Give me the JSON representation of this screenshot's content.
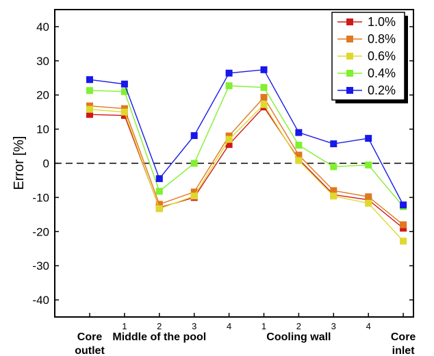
{
  "chart_data": {
    "type": "line",
    "ylabel": "Error [%]",
    "ylim": [
      -45,
      45
    ],
    "yticks": [
      -40,
      -30,
      -20,
      -10,
      0,
      10,
      20,
      30,
      40
    ],
    "x_tick_labels": [
      "",
      "1",
      "2",
      "3",
      "4",
      "1",
      "2",
      "3",
      "4",
      ""
    ],
    "groups": [
      {
        "label_lines": [
          "Core",
          "outlet"
        ],
        "center": 0
      },
      {
        "label_lines": [
          "Middle of the pool"
        ],
        "center": 2
      },
      {
        "label_lines": [
          "Cooling wall"
        ],
        "center": 6
      },
      {
        "label_lines": [
          "Core",
          "inlet"
        ],
        "center": 9
      }
    ],
    "reference_line": 0,
    "legend_position": "top-right",
    "series": [
      {
        "name": "1.0%",
        "color": "#d01818",
        "values": [
          14.3,
          14.0,
          -13.0,
          -10.0,
          5.5,
          16.5,
          1.2,
          -9.2,
          -10.7,
          -19.0
        ]
      },
      {
        "name": "0.8%",
        "color": "#e07820",
        "values": [
          16.8,
          16.0,
          -12.0,
          -8.4,
          8.0,
          19.3,
          2.4,
          -8.0,
          -9.8,
          -18.0
        ]
      },
      {
        "name": "0.6%",
        "color": "#e0d830",
        "values": [
          15.8,
          15.0,
          -13.3,
          -9.6,
          7.0,
          17.2,
          0.8,
          -9.6,
          -11.7,
          -22.8
        ]
      },
      {
        "name": "0.4%",
        "color": "#80f030",
        "values": [
          21.3,
          21.0,
          -8.2,
          0.0,
          22.7,
          22.2,
          5.3,
          -1.0,
          -0.5,
          -12.7
        ]
      },
      {
        "name": "0.2%",
        "color": "#1818e8",
        "values": [
          24.5,
          23.2,
          -4.5,
          8.1,
          26.4,
          27.4,
          9.0,
          5.7,
          7.3,
          -12.2
        ]
      }
    ]
  }
}
